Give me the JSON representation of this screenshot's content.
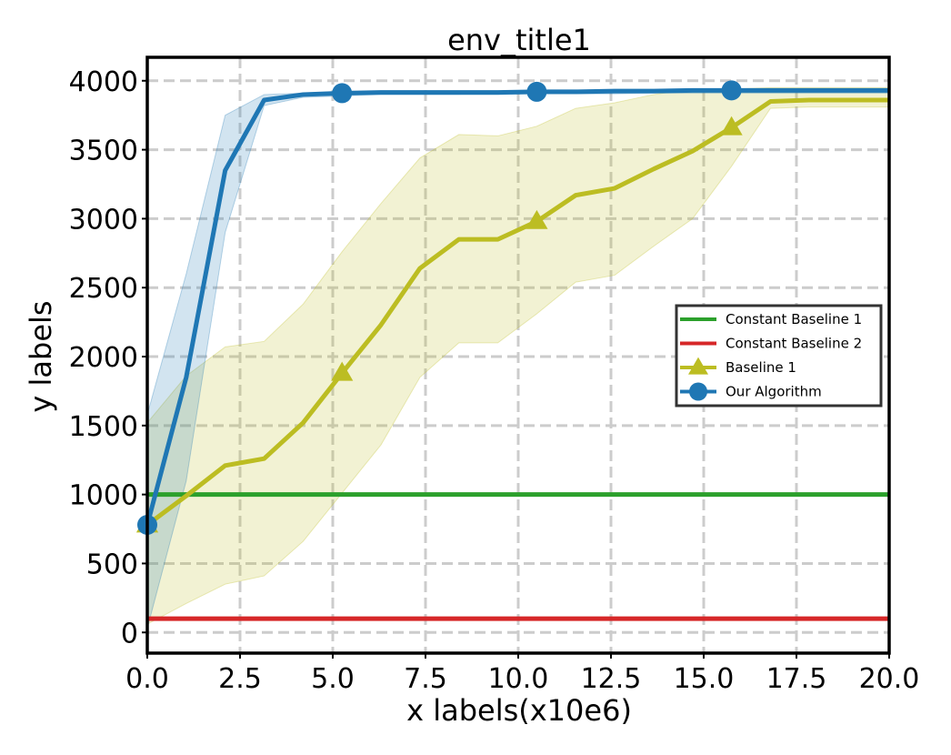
{
  "chart_data": {
    "type": "line",
    "title": "env_title1",
    "xlabel": "x labels(x10e6)",
    "ylabel": "y labels",
    "xlim": [
      0,
      20
    ],
    "ylim": [
      -150,
      4170
    ],
    "xticks": [
      0,
      2.5,
      5,
      7.5,
      10,
      12.5,
      15,
      17.5,
      20
    ],
    "xtick_labels": [
      "0.0",
      "2.5",
      "5.0",
      "7.5",
      "10.0",
      "12.5",
      "15.0",
      "17.5",
      "20.0"
    ],
    "yticks": [
      0,
      500,
      1000,
      1500,
      2000,
      2500,
      3000,
      3500,
      4000
    ],
    "ytick_labels": [
      "0",
      "500",
      "1000",
      "1500",
      "2000",
      "2500",
      "3000",
      "3500",
      "4000"
    ],
    "grid": true,
    "legend_position": "center-right",
    "series": [
      {
        "name": "Constant Baseline 1",
        "kind": "constant",
        "color": "#2ca02c",
        "marker": "none",
        "x": [
          0,
          20
        ],
        "y": [
          1000,
          1000
        ]
      },
      {
        "name": "Constant Baseline 2",
        "kind": "constant",
        "color": "#d62728",
        "marker": "none",
        "x": [
          0,
          20
        ],
        "y": [
          100,
          100
        ]
      },
      {
        "name": "Baseline 1",
        "kind": "line",
        "color": "#bcbd22",
        "marker": "triangle",
        "x": [
          0,
          1.05,
          2.1,
          3.15,
          4.2,
          5.25,
          6.3,
          7.35,
          8.4,
          9.45,
          10.5,
          11.55,
          12.6,
          13.65,
          14.7,
          15.75,
          16.8,
          17.85,
          18.9,
          20
        ],
        "y": [
          780,
          990,
          1210,
          1260,
          1520,
          1880,
          2230,
          2640,
          2850,
          2850,
          2980,
          3170,
          3220,
          3360,
          3490,
          3660,
          3850,
          3860,
          3860,
          3860
        ],
        "lower": [
          60,
          210,
          350,
          410,
          660,
          1010,
          1360,
          1850,
          2100,
          2100,
          2310,
          2540,
          2590,
          2800,
          3000,
          3380,
          3800,
          3810,
          3810,
          3810
        ],
        "upper": [
          1520,
          1860,
          2070,
          2110,
          2380,
          2760,
          3110,
          3440,
          3610,
          3600,
          3670,
          3800,
          3840,
          3900,
          3940,
          3940,
          3950,
          3950,
          3950,
          3950
        ],
        "marker_indices": [
          0,
          5,
          10,
          15
        ]
      },
      {
        "name": "Our Algorithm",
        "kind": "line",
        "color": "#1f77b4",
        "marker": "circle",
        "x": [
          0,
          1.05,
          2.1,
          3.15,
          4.2,
          5.25,
          6.3,
          7.35,
          8.4,
          9.45,
          10.5,
          11.55,
          12.6,
          13.65,
          14.7,
          15.75,
          16.8,
          17.85,
          18.9,
          20
        ],
        "y": [
          780,
          1850,
          3350,
          3860,
          3900,
          3910,
          3915,
          3915,
          3915,
          3915,
          3920,
          3920,
          3925,
          3925,
          3930,
          3930,
          3930,
          3930,
          3930,
          3930
        ],
        "lower": [
          30,
          1100,
          2900,
          3820,
          3880,
          3890,
          3900,
          3900,
          3900,
          3900,
          3905,
          3905,
          3905,
          3910,
          3910,
          3910,
          3910,
          3910,
          3910,
          3910
        ],
        "upper": [
          1580,
          2600,
          3750,
          3900,
          3910,
          3920,
          3925,
          3925,
          3925,
          3925,
          3930,
          3930,
          3935,
          3935,
          3940,
          3940,
          3940,
          3940,
          3940,
          3940
        ],
        "marker_indices": [
          0,
          5,
          10,
          15
        ]
      }
    ]
  }
}
